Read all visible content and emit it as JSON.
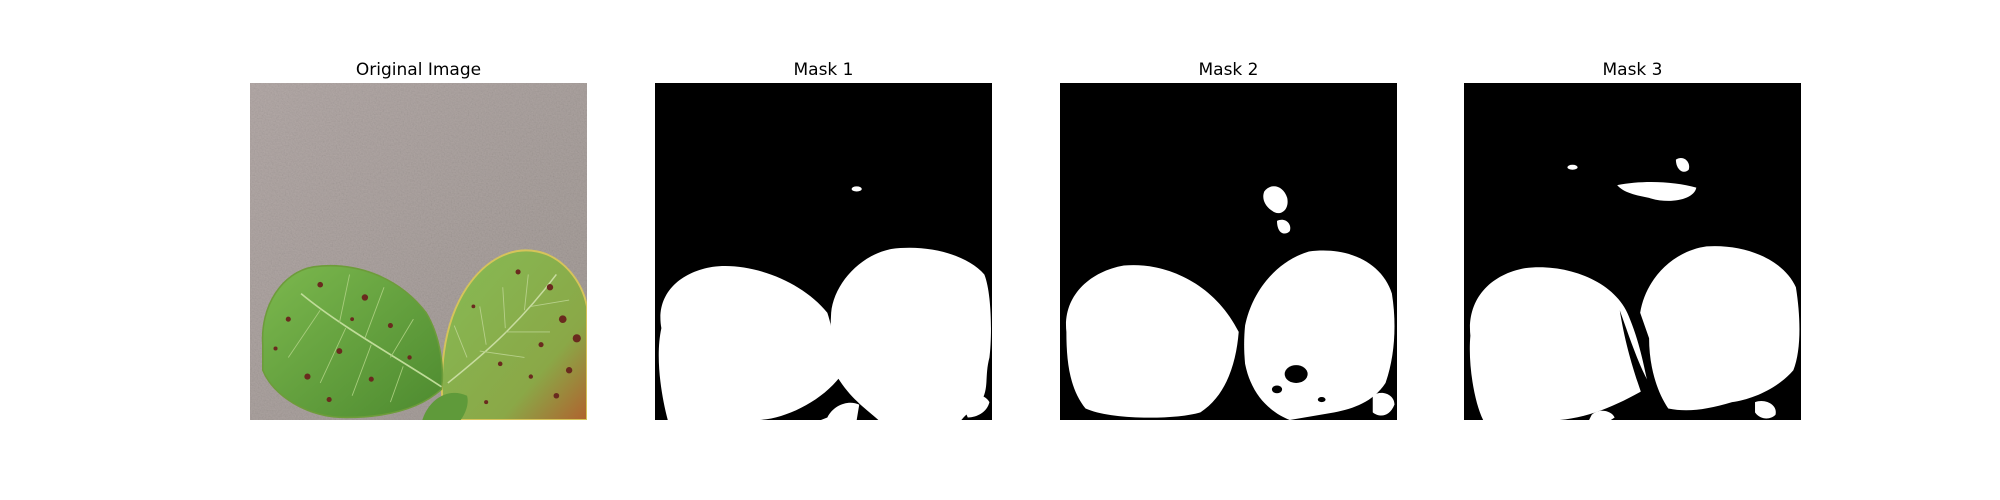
{
  "panels": [
    {
      "title": "Original Image",
      "image": "strawberry-leaves-photo"
    },
    {
      "title": "Mask 1",
      "image": "binary-segmentation-mask"
    },
    {
      "title": "Mask 2",
      "image": "binary-segmentation-mask"
    },
    {
      "title": "Mask 3",
      "image": "binary-segmentation-mask"
    }
  ],
  "colors": {
    "background": "#ffffff",
    "mask_background": "#000000",
    "mask_foreground": "#ffffff",
    "leaf_green": "#6fa845",
    "leaf_dark": "#3f7a2a",
    "spot_brown": "#6a2a1e",
    "surface_gray": "#b5aeab"
  }
}
